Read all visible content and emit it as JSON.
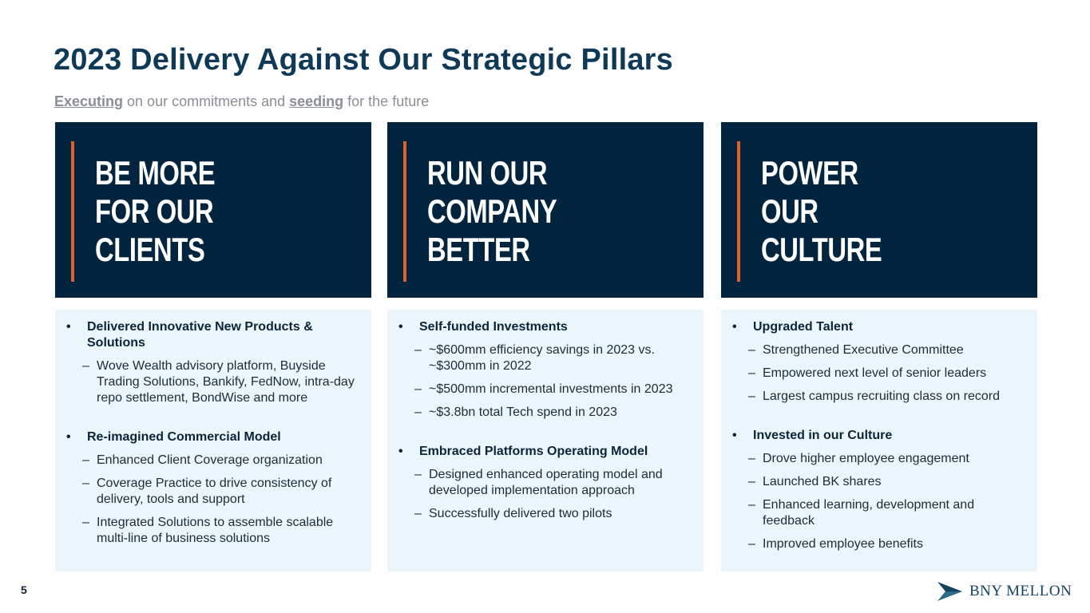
{
  "title": "2023 Delivery Against Our Strategic Pillars",
  "subtitle": {
    "em1": "Executing",
    "mid": " on our commitments and ",
    "em2": "seeding",
    "end": " for the future"
  },
  "page_number": "5",
  "logo": {
    "text": "BNY MELLON"
  },
  "colors": {
    "navy": "#02243f",
    "accent": "#e0622a",
    "panel": "#eaf6fc",
    "title": "#0f3a57"
  },
  "pillars": [
    {
      "heading": "BE MORE\nFOR OUR\nCLIENTS",
      "items": [
        {
          "title": "Delivered Innovative New Products & Solutions",
          "subs": [
            "Wove Wealth advisory platform, Buyside Trading Solutions, Bankify, FedNow, intra-day repo settlement, BondWise and more"
          ]
        },
        {
          "title": "Re-imagined Commercial Model",
          "subs": [
            "Enhanced Client Coverage organization",
            "Coverage Practice to drive consistency of delivery, tools and support",
            "Integrated Solutions to assemble scalable multi-line of business solutions"
          ]
        }
      ]
    },
    {
      "heading": "RUN OUR\nCOMPANY\nBETTER",
      "items": [
        {
          "title": "Self-funded Investments",
          "subs": [
            "~$600mm efficiency savings in 2023 vs. ~$300mm in 2022",
            "~$500mm incremental investments in 2023",
            "~$3.8bn total Tech spend in 2023"
          ]
        },
        {
          "title": "Embraced Platforms Operating Model",
          "subs": [
            "Designed enhanced operating model and developed implementation approach",
            "Successfully delivered two pilots"
          ]
        }
      ]
    },
    {
      "heading": "POWER\nOUR\nCULTURE",
      "items": [
        {
          "title": "Upgraded Talent",
          "subs": [
            "Strengthened Executive Committee",
            "Empowered next level of senior leaders",
            "Largest campus recruiting class on record"
          ]
        },
        {
          "title": "Invested in our Culture",
          "subs": [
            "Drove higher employee engagement",
            "Launched BK shares",
            "Enhanced learning, development and feedback",
            "Improved employee benefits"
          ]
        }
      ]
    }
  ]
}
